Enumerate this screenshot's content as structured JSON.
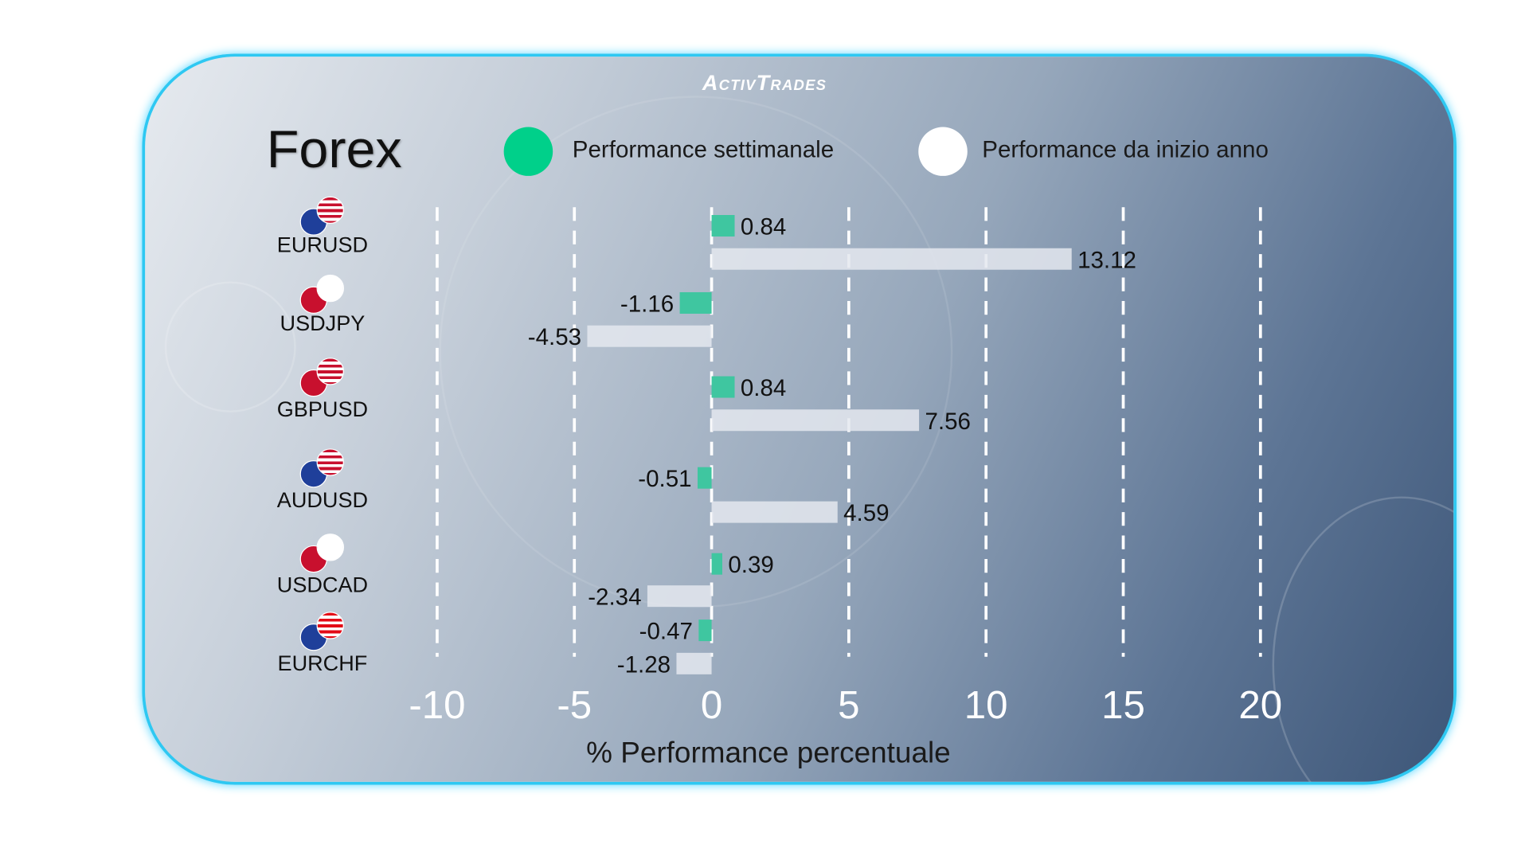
{
  "logo": "ActivTrades",
  "title": "Forex",
  "colors": {
    "weekly": "#3fc6a0",
    "ytd": "#e4e8ee",
    "legend_weekly": "#00d08a",
    "legend_ytd": "#ffffff",
    "border": "#2ec8f2"
  },
  "chart_data": {
    "type": "bar",
    "orientation": "horizontal",
    "categories": [
      "EURUSD",
      "USDJPY",
      "GBPUSD",
      "AUDUSD",
      "USDCAD",
      "EURCHF"
    ],
    "series": [
      {
        "name": "Performance settimanale",
        "values": [
          0.84,
          -1.16,
          0.84,
          -0.51,
          0.39,
          -0.47
        ]
      },
      {
        "name": "Performance da inizio anno",
        "values": [
          13.12,
          -4.53,
          7.56,
          4.59,
          -2.34,
          -1.28
        ]
      }
    ],
    "xlabel": "% Performance percentuale",
    "xlim": [
      -10,
      20
    ],
    "xticks": [
      "-10",
      "-5",
      "0",
      "5",
      "10",
      "15",
      "20"
    ],
    "grid": "vertical dashed",
    "legend": "top"
  }
}
